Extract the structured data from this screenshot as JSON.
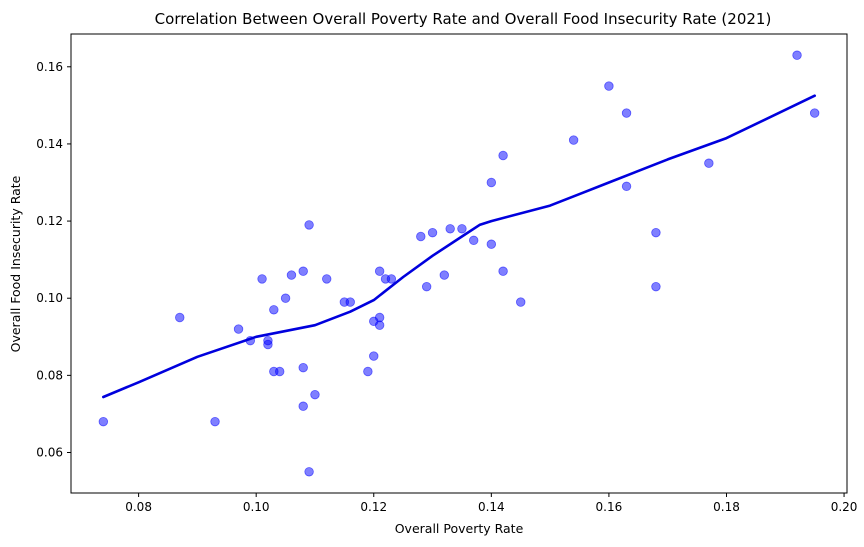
{
  "chart_data": {
    "type": "scatter",
    "title": "Correlation Between Overall Poverty Rate and Overall Food Insecurity Rate (2021)",
    "xlabel": "Overall Poverty Rate",
    "ylabel": "Overall Food Insecurity Rate",
    "xlim": [
      0.0685,
      0.2005
    ],
    "ylim": [
      0.0495,
      0.1685
    ],
    "xticks": [
      0.08,
      0.1,
      0.12,
      0.14,
      0.16,
      0.18,
      0.2
    ],
    "xtick_labels": [
      "0.08",
      "0.10",
      "0.12",
      "0.14",
      "0.16",
      "0.18",
      "0.20"
    ],
    "yticks": [
      0.06,
      0.08,
      0.1,
      0.12,
      0.14,
      0.16
    ],
    "ytick_labels": [
      "0.06",
      "0.08",
      "0.10",
      "0.12",
      "0.14",
      "0.16"
    ],
    "grid": false,
    "series": [
      {
        "kind": "scatter",
        "color": "#0000ff",
        "points": [
          [
            0.074,
            0.068
          ],
          [
            0.087,
            0.095
          ],
          [
            0.093,
            0.068
          ],
          [
            0.097,
            0.092
          ],
          [
            0.099,
            0.089
          ],
          [
            0.101,
            0.105
          ],
          [
            0.102,
            0.089
          ],
          [
            0.102,
            0.088
          ],
          [
            0.103,
            0.097
          ],
          [
            0.103,
            0.081
          ],
          [
            0.104,
            0.081
          ],
          [
            0.105,
            0.1
          ],
          [
            0.106,
            0.106
          ],
          [
            0.108,
            0.107
          ],
          [
            0.108,
            0.082
          ],
          [
            0.108,
            0.072
          ],
          [
            0.109,
            0.119
          ],
          [
            0.109,
            0.055
          ],
          [
            0.11,
            0.075
          ],
          [
            0.112,
            0.105
          ],
          [
            0.115,
            0.099
          ],
          [
            0.116,
            0.099
          ],
          [
            0.119,
            0.081
          ],
          [
            0.12,
            0.094
          ],
          [
            0.12,
            0.085
          ],
          [
            0.121,
            0.107
          ],
          [
            0.121,
            0.095
          ],
          [
            0.121,
            0.093
          ],
          [
            0.122,
            0.105
          ],
          [
            0.123,
            0.105
          ],
          [
            0.128,
            0.116
          ],
          [
            0.129,
            0.103
          ],
          [
            0.13,
            0.117
          ],
          [
            0.132,
            0.106
          ],
          [
            0.133,
            0.118
          ],
          [
            0.135,
            0.118
          ],
          [
            0.137,
            0.115
          ],
          [
            0.14,
            0.13
          ],
          [
            0.14,
            0.114
          ],
          [
            0.142,
            0.137
          ],
          [
            0.142,
            0.107
          ],
          [
            0.145,
            0.099
          ],
          [
            0.154,
            0.141
          ],
          [
            0.16,
            0.155
          ],
          [
            0.163,
            0.148
          ],
          [
            0.163,
            0.129
          ],
          [
            0.168,
            0.117
          ],
          [
            0.168,
            0.103
          ],
          [
            0.177,
            0.135
          ],
          [
            0.192,
            0.163
          ],
          [
            0.195,
            0.148
          ]
        ]
      },
      {
        "kind": "line",
        "color": "#0000dd",
        "points": [
          [
            0.074,
            0.0744
          ],
          [
            0.08,
            0.0782
          ],
          [
            0.09,
            0.0848
          ],
          [
            0.1,
            0.09
          ],
          [
            0.11,
            0.093
          ],
          [
            0.116,
            0.0965
          ],
          [
            0.12,
            0.0995
          ],
          [
            0.125,
            0.1055
          ],
          [
            0.13,
            0.111
          ],
          [
            0.135,
            0.116
          ],
          [
            0.138,
            0.119
          ],
          [
            0.14,
            0.12
          ],
          [
            0.15,
            0.124
          ],
          [
            0.155,
            0.127
          ],
          [
            0.16,
            0.13
          ],
          [
            0.17,
            0.136
          ],
          [
            0.18,
            0.1415
          ],
          [
            0.195,
            0.1525
          ]
        ]
      }
    ]
  }
}
